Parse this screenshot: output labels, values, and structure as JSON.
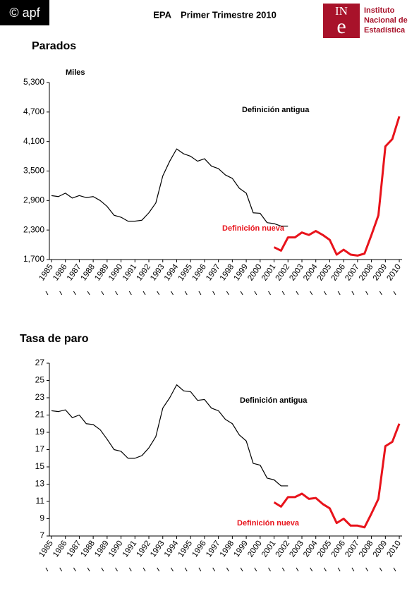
{
  "header": {
    "badge": "© apf",
    "title_left": "EPA",
    "title_right": "Primer Trimestre 2010",
    "logo_top": "IN",
    "logo_bottom": "e",
    "logo_lines": [
      "Instituto",
      "Nacional de",
      "Estadística"
    ]
  },
  "chart_data": [
    {
      "type": "line",
      "title": "Parados",
      "y_unit": "Miles",
      "ylim": [
        1700,
        5300
      ],
      "yticks": [
        {
          "value": 1700,
          "label": "1,700"
        },
        {
          "value": 2300,
          "label": "2,300"
        },
        {
          "value": 2900,
          "label": "2,900"
        },
        {
          "value": 3500,
          "label": "3,500"
        },
        {
          "value": 4100,
          "label": "4,100"
        },
        {
          "value": 4700,
          "label": "4,700"
        },
        {
          "value": 5300,
          "label": "5,300"
        }
      ],
      "xlim": [
        1984.85,
        2010.2
      ],
      "xticks": [
        1985,
        1986,
        1987,
        1988,
        1989,
        1990,
        1991,
        1992,
        1993,
        1994,
        1995,
        1996,
        1997,
        1998,
        1999,
        2000,
        2001,
        2002,
        2003,
        2004,
        2005,
        2006,
        2007,
        2008,
        2009,
        2010
      ],
      "series": [
        {
          "name": "Definición antigua",
          "color": "#000000",
          "x": [
            1985,
            1985.5,
            1986,
            1986.5,
            1987,
            1987.5,
            1988,
            1988.5,
            1989,
            1989.5,
            1990,
            1990.5,
            1991,
            1991.5,
            1992,
            1992.5,
            1993,
            1993.5,
            1994,
            1994.5,
            1995,
            1995.5,
            1996,
            1996.5,
            1997,
            1997.5,
            1998,
            1998.5,
            1999,
            1999.5,
            2000,
            2000.5,
            2001,
            2001.5,
            2002
          ],
          "values": [
            3000,
            2980,
            3050,
            2950,
            3000,
            2960,
            2980,
            2900,
            2780,
            2600,
            2560,
            2480,
            2480,
            2500,
            2650,
            2850,
            3400,
            3700,
            3950,
            3850,
            3800,
            3700,
            3750,
            3600,
            3550,
            3420,
            3350,
            3150,
            3050,
            2650,
            2640,
            2450,
            2430,
            2380,
            2380
          ]
        },
        {
          "name": "Definición nueva",
          "color": "#e8131b",
          "x": [
            2001,
            2001.5,
            2002,
            2002.5,
            2003,
            2003.5,
            2004,
            2004.5,
            2005,
            2005.5,
            2006,
            2006.5,
            2007,
            2007.5,
            2008,
            2008.5,
            2009,
            2009.5,
            2010
          ],
          "values": [
            1950,
            1880,
            2150,
            2150,
            2250,
            2200,
            2280,
            2200,
            2100,
            1800,
            1900,
            1800,
            1780,
            1820,
            2200,
            2600,
            4000,
            4150,
            4610
          ]
        }
      ]
    },
    {
      "type": "line",
      "title": "Tasa de paro",
      "ylim": [
        7,
        27
      ],
      "yticks": [
        7,
        9,
        11,
        13,
        15,
        17,
        19,
        21,
        23,
        25,
        27
      ],
      "xlim": [
        1984.85,
        2010.2
      ],
      "xticks": [
        1985,
        1986,
        1987,
        1988,
        1989,
        1990,
        1991,
        1992,
        1993,
        1994,
        1995,
        1996,
        1997,
        1998,
        1999,
        2000,
        2001,
        2002,
        2003,
        2004,
        2005,
        2006,
        2007,
        2008,
        2009,
        2010
      ],
      "series": [
        {
          "name": "Definición antigua",
          "color": "#000000",
          "x": [
            1985,
            1985.5,
            1986,
            1986.5,
            1987,
            1987.5,
            1988,
            1988.5,
            1989,
            1989.5,
            1990,
            1990.5,
            1991,
            1991.5,
            1992,
            1992.5,
            1993,
            1993.5,
            1994,
            1994.5,
            1995,
            1995.5,
            1996,
            1996.5,
            1997,
            1997.5,
            1998,
            1998.5,
            1999,
            1999.5,
            2000,
            2000.5,
            2001,
            2001.5,
            2002
          ],
          "values": [
            21.5,
            21.4,
            21.6,
            20.7,
            21.0,
            20.0,
            19.9,
            19.3,
            18.2,
            17.0,
            16.8,
            16.0,
            16.0,
            16.3,
            17.2,
            18.5,
            21.8,
            23.0,
            24.5,
            23.8,
            23.7,
            22.7,
            22.8,
            21.8,
            21.5,
            20.5,
            20.0,
            18.7,
            18.0,
            15.4,
            15.2,
            13.7,
            13.5,
            12.8,
            12.8
          ]
        },
        {
          "name": "Definición nueva",
          "color": "#e8131b",
          "x": [
            2001,
            2001.5,
            2002,
            2002.5,
            2003,
            2003.5,
            2004,
            2004.5,
            2005,
            2005.5,
            2006,
            2006.5,
            2007,
            2007.5,
            2008,
            2008.5,
            2009,
            2009.5,
            2010
          ],
          "values": [
            10.9,
            10.4,
            11.5,
            11.5,
            11.9,
            11.3,
            11.4,
            10.7,
            10.2,
            8.5,
            9.0,
            8.2,
            8.2,
            8.0,
            9.6,
            11.3,
            17.4,
            17.9,
            20.0
          ]
        }
      ]
    }
  ]
}
